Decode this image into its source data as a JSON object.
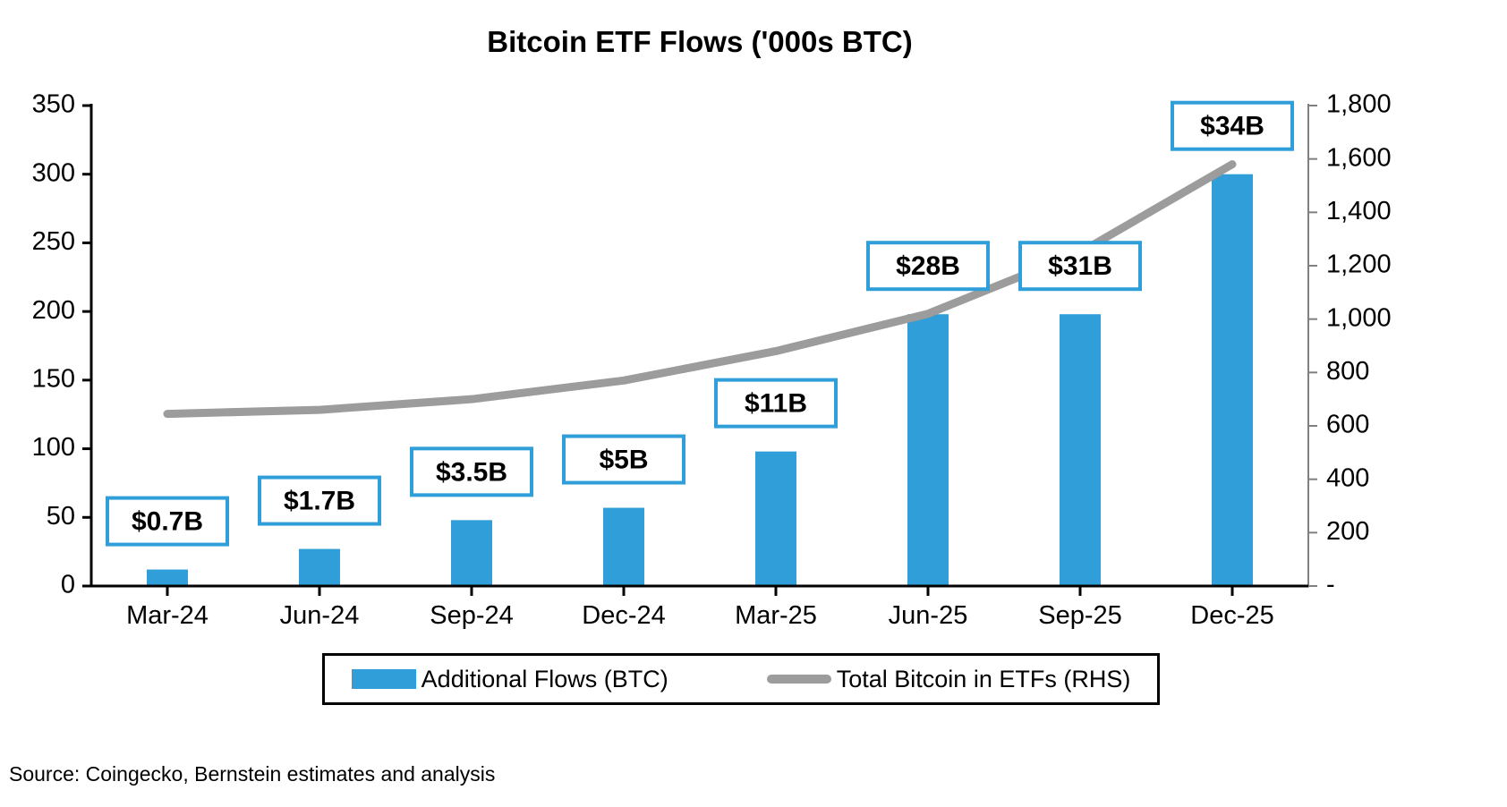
{
  "source_note": "Source: Coingecko, Bernstein estimates and analysis",
  "legend": {
    "bars": "Additional Flows (BTC)",
    "line": "Total Bitcoin in ETFs (RHS)"
  },
  "colors": {
    "bar": "#2f9ed9",
    "line": "#9c9c9c",
    "box_border": "#2f9ed9",
    "box_fill": "#ffffff",
    "left_axis": "#000000",
    "right_axis": "#808080",
    "text": "#000000"
  },
  "chart_data": {
    "type": "bar",
    "title": "Bitcoin ETF Flows ('000s BTC)",
    "categories": [
      "Mar-24",
      "Jun-24",
      "Sep-24",
      "Dec-24",
      "Mar-25",
      "Jun-25",
      "Sep-25",
      "Dec-25"
    ],
    "series": [
      {
        "name": "Additional Flows (BTC)",
        "type": "bar",
        "axis": "left",
        "values": [
          12,
          27,
          48,
          57,
          98,
          198,
          198,
          300
        ],
        "value_labels": [
          "$0.7B",
          "$1.7B",
          "$3.5B",
          "$5B",
          "$11B",
          "$28B",
          "$31B",
          "$34B"
        ]
      },
      {
        "name": "Total Bitcoin in ETFs (RHS)",
        "type": "line",
        "axis": "right",
        "values": [
          645,
          660,
          700,
          770,
          880,
          1020,
          1250,
          1580
        ]
      }
    ],
    "left_axis": {
      "min": 0,
      "max": 350,
      "step": 50,
      "tick_labels": [
        "0",
        "50",
        "100",
        "150",
        "200",
        "250",
        "300",
        "350"
      ]
    },
    "right_axis": {
      "min": 0,
      "max": 1800,
      "step": 200,
      "tick_labels": [
        "-",
        "200",
        "400",
        "600",
        "800",
        "1,000",
        "1,200",
        "1,400",
        "1,600",
        "1,800"
      ]
    },
    "grid": false,
    "legend_position": "bottom"
  }
}
